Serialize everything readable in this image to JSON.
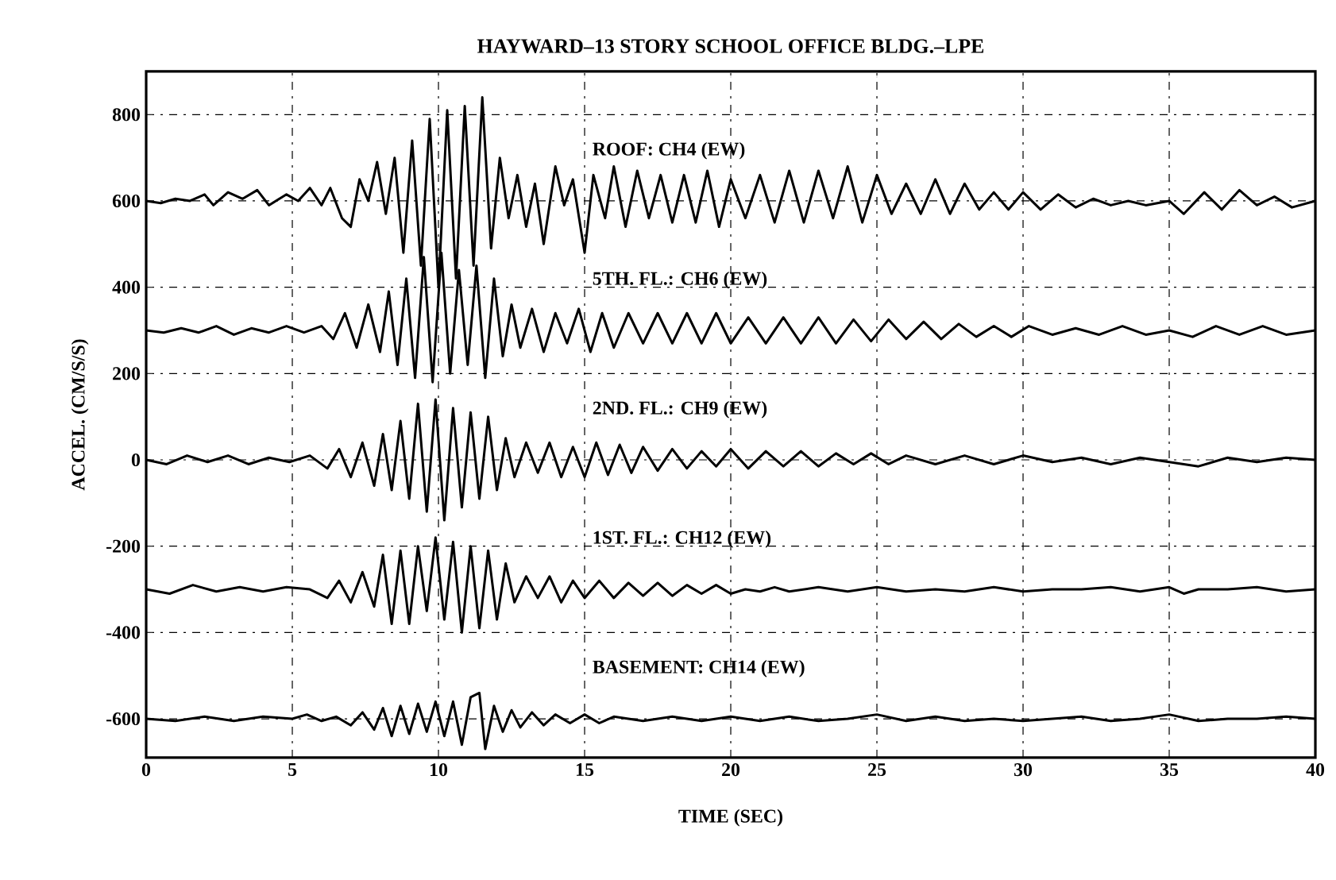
{
  "chart_data": {
    "type": "line",
    "title": "HAYWARD–13 STORY SCHOOL OFFICE BLDG.–LPE",
    "xlabel": "TIME (SEC)",
    "ylabel": "ACCEL. (CM/S/S)",
    "xlim": [
      0,
      40
    ],
    "ylim": [
      -690,
      900
    ],
    "xticks": [
      0,
      5,
      10,
      15,
      20,
      25,
      30,
      35,
      40
    ],
    "yticks": [
      -600,
      -400,
      -200,
      0,
      200,
      400,
      600,
      800
    ],
    "grid": true,
    "marker": "none",
    "line_style": "solid",
    "series": [
      {
        "name": "ROOF: CH4 (EW)",
        "color": "#000000",
        "x": [
          0,
          0.5,
          1,
          1.5,
          2,
          2.3,
          2.8,
          3.3,
          3.8,
          4.2,
          4.8,
          5.2,
          5.6,
          6.0,
          6.3,
          6.7,
          7.0,
          7.3,
          7.6,
          7.9,
          8.2,
          8.5,
          8.8,
          9.1,
          9.4,
          9.7,
          10.0,
          10.3,
          10.6,
          10.9,
          11.2,
          11.5,
          11.8,
          12.1,
          12.4,
          12.7,
          13.0,
          13.3,
          13.6,
          14.0,
          14.3,
          14.6,
          15.0,
          15.3,
          15.7,
          16.0,
          16.4,
          16.8,
          17.2,
          17.6,
          18.0,
          18.4,
          18.8,
          19.2,
          19.6,
          20.0,
          20.5,
          21.0,
          21.5,
          22.0,
          22.5,
          23.0,
          23.5,
          24.0,
          24.5,
          25.0,
          25.5,
          26.0,
          26.5,
          27.0,
          27.5,
          28.0,
          28.5,
          29.0,
          29.5,
          30.0,
          30.6,
          31.2,
          31.8,
          32.4,
          33.0,
          33.6,
          34.2,
          35.0,
          35.5,
          36.2,
          36.8,
          37.4,
          38.0,
          38.6,
          39.2,
          40
        ],
        "values": [
          600,
          595,
          605,
          600,
          615,
          590,
          620,
          605,
          625,
          590,
          615,
          600,
          630,
          590,
          630,
          560,
          540,
          650,
          600,
          690,
          570,
          700,
          480,
          740,
          450,
          790,
          400,
          810,
          420,
          820,
          450,
          840,
          490,
          700,
          560,
          660,
          540,
          640,
          500,
          680,
          590,
          650,
          480,
          660,
          560,
          680,
          540,
          670,
          560,
          660,
          550,
          660,
          550,
          670,
          540,
          650,
          560,
          660,
          550,
          670,
          550,
          670,
          560,
          680,
          550,
          660,
          570,
          640,
          570,
          650,
          570,
          640,
          580,
          620,
          580,
          620,
          580,
          615,
          585,
          605,
          590,
          600,
          590,
          600,
          570,
          620,
          580,
          625,
          590,
          610,
          585,
          600
        ]
      },
      {
        "name": "5TH. FL.: CH6 (EW)",
        "color": "#000000",
        "x": [
          0,
          0.6,
          1.2,
          1.8,
          2.4,
          3,
          3.6,
          4.2,
          4.8,
          5.4,
          6,
          6.4,
          6.8,
          7.2,
          7.6,
          8.0,
          8.3,
          8.6,
          8.9,
          9.2,
          9.5,
          9.8,
          10.1,
          10.4,
          10.7,
          11.0,
          11.3,
          11.6,
          11.9,
          12.2,
          12.5,
          12.8,
          13.2,
          13.6,
          14.0,
          14.4,
          14.8,
          15.2,
          15.6,
          16.0,
          16.5,
          17.0,
          17.5,
          18.0,
          18.5,
          19.0,
          19.5,
          20.0,
          20.6,
          21.2,
          21.8,
          22.4,
          23.0,
          23.6,
          24.2,
          24.8,
          25.4,
          26.0,
          26.6,
          27.2,
          27.8,
          28.4,
          29.0,
          29.6,
          30.2,
          31,
          31.8,
          32.6,
          33.4,
          34.2,
          35,
          35.8,
          36.6,
          37.4,
          38.2,
          39,
          40
        ],
        "values": [
          300,
          295,
          305,
          295,
          310,
          290,
          305,
          295,
          310,
          295,
          310,
          280,
          340,
          260,
          360,
          250,
          390,
          220,
          420,
          190,
          470,
          180,
          480,
          200,
          440,
          220,
          450,
          190,
          420,
          240,
          360,
          260,
          350,
          250,
          340,
          270,
          350,
          250,
          340,
          260,
          340,
          270,
          340,
          270,
          340,
          270,
          340,
          270,
          330,
          270,
          330,
          270,
          330,
          270,
          325,
          275,
          325,
          280,
          320,
          280,
          315,
          285,
          310,
          285,
          310,
          290,
          305,
          290,
          310,
          290,
          300,
          285,
          310,
          290,
          310,
          290,
          300
        ]
      },
      {
        "name": "2ND. FL.: CH9 (EW)",
        "color": "#000000",
        "x": [
          0,
          0.7,
          1.4,
          2.1,
          2.8,
          3.5,
          4.2,
          4.9,
          5.6,
          6.2,
          6.6,
          7.0,
          7.4,
          7.8,
          8.1,
          8.4,
          8.7,
          9.0,
          9.3,
          9.6,
          9.9,
          10.2,
          10.5,
          10.8,
          11.1,
          11.4,
          11.7,
          12.0,
          12.3,
          12.6,
          13.0,
          13.4,
          13.8,
          14.2,
          14.6,
          15.0,
          15.4,
          15.8,
          16.2,
          16.6,
          17.0,
          17.5,
          18.0,
          18.5,
          19.0,
          19.5,
          20.0,
          20.6,
          21.2,
          21.8,
          22.4,
          23.0,
          23.6,
          24.2,
          24.8,
          25.4,
          26,
          27,
          28,
          29,
          30,
          31,
          32,
          33,
          34,
          35,
          36,
          37,
          38,
          39,
          40
        ],
        "values": [
          0,
          -10,
          10,
          -5,
          10,
          -10,
          5,
          -5,
          10,
          -20,
          25,
          -40,
          40,
          -60,
          60,
          -70,
          90,
          -90,
          130,
          -120,
          140,
          -140,
          120,
          -110,
          110,
          -90,
          100,
          -70,
          50,
          -40,
          40,
          -30,
          40,
          -40,
          30,
          -40,
          40,
          -35,
          35,
          -30,
          30,
          -25,
          25,
          -20,
          20,
          -15,
          25,
          -20,
          20,
          -15,
          20,
          -15,
          15,
          -10,
          15,
          -10,
          10,
          -10,
          10,
          -10,
          10,
          -5,
          5,
          -10,
          5,
          -5,
          -15,
          5,
          -5,
          5,
          0
        ]
      },
      {
        "name": "1ST. FL.: CH12 (EW)",
        "color": "#000000",
        "x": [
          0,
          0.8,
          1.6,
          2.4,
          3.2,
          4,
          4.8,
          5.6,
          6.2,
          6.6,
          7.0,
          7.4,
          7.8,
          8.1,
          8.4,
          8.7,
          9.0,
          9.3,
          9.6,
          9.9,
          10.2,
          10.5,
          10.8,
          11.1,
          11.4,
          11.7,
          12.0,
          12.3,
          12.6,
          13.0,
          13.4,
          13.8,
          14.2,
          14.6,
          15.0,
          15.5,
          16,
          16.5,
          17,
          17.5,
          18,
          18.5,
          19,
          19.5,
          20,
          20.5,
          21,
          21.5,
          22,
          23,
          24,
          25,
          26,
          27,
          28,
          29,
          30,
          31,
          32,
          33,
          34,
          35,
          35.5,
          36,
          37,
          38,
          39,
          40
        ],
        "values": [
          -300,
          -310,
          -290,
          -305,
          -295,
          -305,
          -295,
          -300,
          -320,
          -280,
          -330,
          -260,
          -340,
          -220,
          -380,
          -210,
          -380,
          -200,
          -350,
          -180,
          -370,
          -190,
          -400,
          -200,
          -390,
          -210,
          -370,
          -240,
          -330,
          -270,
          -320,
          -270,
          -330,
          -280,
          -320,
          -280,
          -320,
          -285,
          -315,
          -285,
          -315,
          -290,
          -310,
          -290,
          -310,
          -300,
          -305,
          -295,
          -305,
          -295,
          -305,
          -295,
          -305,
          -300,
          -305,
          -295,
          -305,
          -300,
          -300,
          -295,
          -305,
          -295,
          -310,
          -300,
          -300,
          -295,
          -305,
          -300
        ]
      },
      {
        "name": "BASEMENT: CH14 (EW)",
        "color": "#000000",
        "x": [
          0,
          1,
          2,
          3,
          4,
          5,
          5.5,
          6,
          6.5,
          7,
          7.4,
          7.8,
          8.1,
          8.4,
          8.7,
          9.0,
          9.3,
          9.6,
          9.9,
          10.2,
          10.5,
          10.8,
          11.1,
          11.4,
          11.6,
          11.9,
          12.2,
          12.5,
          12.8,
          13.2,
          13.6,
          14,
          14.5,
          15,
          15.5,
          16,
          17,
          18,
          19,
          20,
          21,
          22,
          23,
          24,
          25,
          26,
          27,
          28,
          29,
          30,
          31,
          32,
          33,
          34,
          35,
          36,
          37,
          38,
          39,
          40
        ],
        "values": [
          -600,
          -605,
          -595,
          -605,
          -595,
          -600,
          -590,
          -605,
          -595,
          -615,
          -585,
          -625,
          -575,
          -640,
          -570,
          -635,
          -565,
          -630,
          -560,
          -640,
          -560,
          -660,
          -550,
          -540,
          -670,
          -570,
          -630,
          -580,
          -620,
          -585,
          -615,
          -590,
          -610,
          -590,
          -610,
          -595,
          -605,
          -595,
          -605,
          -595,
          -605,
          -595,
          -605,
          -600,
          -590,
          -605,
          -595,
          -605,
          -600,
          -605,
          -600,
          -595,
          -605,
          -600,
          -590,
          -605,
          -600,
          -600,
          -595,
          -600
        ]
      }
    ]
  }
}
